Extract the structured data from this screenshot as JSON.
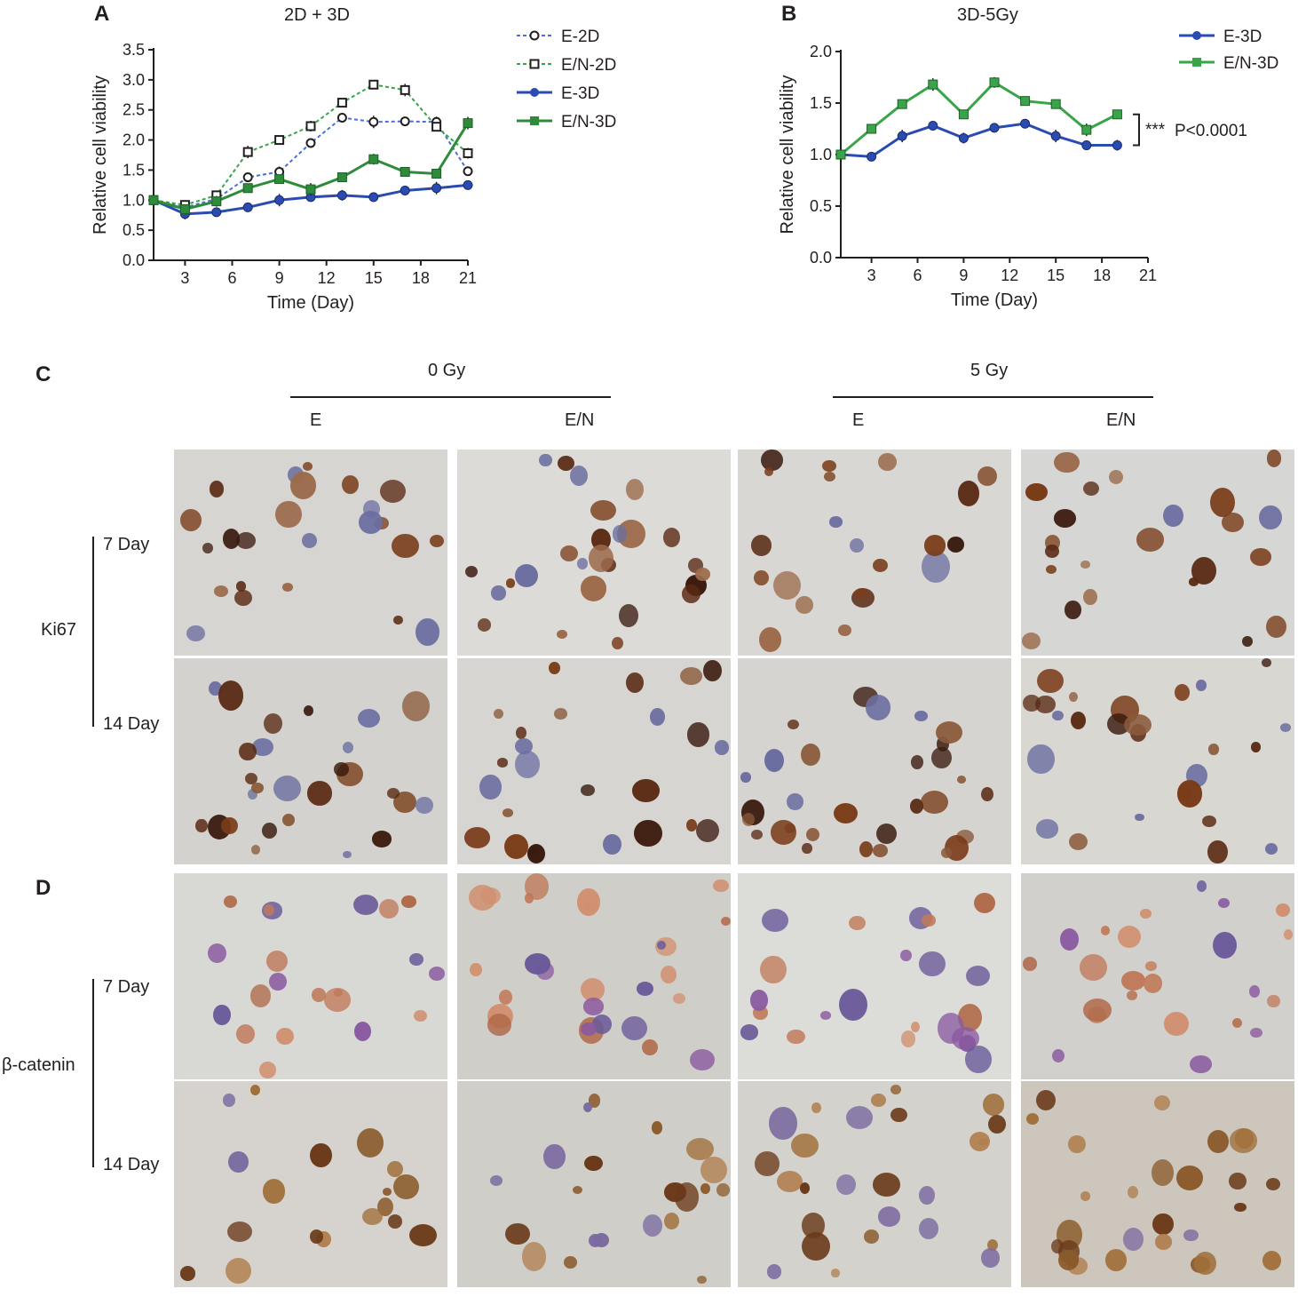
{
  "panels": {
    "A": "A",
    "B": "B",
    "C": "C",
    "D": "D"
  },
  "chart_data": [
    {
      "type": "line",
      "title": "2D + 3D",
      "xlabel": "Time (Day)",
      "ylabel": "Relative cell viability",
      "xlim": [
        1,
        21
      ],
      "ylim": [
        0,
        3.5
      ],
      "xticks": [
        "3",
        "6",
        "9",
        "12",
        "15",
        "18",
        "21"
      ],
      "yticks": [
        "0.0",
        "0.5",
        "1.0",
        "1.5",
        "2.0",
        "2.5",
        "3.0",
        "3.5"
      ],
      "legend_position": "right",
      "series": [
        {
          "name": "E-2D",
          "color": "#4a6fd6",
          "style": "dashed",
          "marker": "open-circle",
          "x": [
            1,
            3,
            5,
            7,
            9,
            11,
            13,
            15,
            17,
            19,
            21
          ],
          "y": [
            1.0,
            0.88,
            1.02,
            1.38,
            1.47,
            1.95,
            2.37,
            2.3,
            2.31,
            2.3,
            1.48
          ]
        },
        {
          "name": "E/N-2D",
          "color": "#3aa44a",
          "style": "dashed",
          "marker": "open-square",
          "x": [
            1,
            3,
            5,
            7,
            9,
            11,
            13,
            15,
            17,
            19,
            21
          ],
          "y": [
            1.0,
            0.92,
            1.08,
            1.8,
            2.0,
            2.23,
            2.62,
            2.92,
            2.83,
            2.22,
            1.78
          ]
        },
        {
          "name": "E-3D",
          "color": "#2a4bb0",
          "style": "solid",
          "marker": "filled-circle",
          "x": [
            1,
            3,
            5,
            7,
            9,
            11,
            13,
            15,
            17,
            19,
            21
          ],
          "y": [
            1.0,
            0.77,
            0.8,
            0.88,
            1.0,
            1.05,
            1.08,
            1.05,
            1.16,
            1.2,
            1.25
          ]
        },
        {
          "name": "E/N-3D",
          "color": "#2e8b3a",
          "style": "solid",
          "marker": "filled-square",
          "x": [
            1,
            3,
            5,
            7,
            9,
            11,
            13,
            15,
            17,
            19,
            21
          ],
          "y": [
            1.0,
            0.85,
            0.98,
            1.2,
            1.35,
            1.18,
            1.38,
            1.68,
            1.47,
            1.44,
            2.28
          ]
        }
      ]
    },
    {
      "type": "line",
      "title": "3D-5Gy",
      "xlabel": "Time (Day)",
      "ylabel": "Relative cell viability",
      "xlim": [
        1,
        21
      ],
      "ylim": [
        0,
        2.0
      ],
      "xticks": [
        "3",
        "6",
        "9",
        "12",
        "15",
        "18",
        "21"
      ],
      "yticks": [
        "0.0",
        "0.5",
        "1.0",
        "1.5",
        "2.0"
      ],
      "legend_position": "top-right",
      "annotation": {
        "stars": "***",
        "text": "P<0.0001"
      },
      "series": [
        {
          "name": "E-3D",
          "color": "#2a4bb0",
          "style": "solid",
          "marker": "filled-circle",
          "x": [
            1,
            3,
            5,
            7,
            9,
            11,
            13,
            15,
            17,
            19
          ],
          "y": [
            1.0,
            0.98,
            1.18,
            1.28,
            1.16,
            1.26,
            1.3,
            1.18,
            1.09,
            1.09
          ]
        },
        {
          "name": "E/N-3D",
          "color": "#3aa44a",
          "style": "solid",
          "marker": "filled-square",
          "x": [
            1,
            3,
            5,
            7,
            9,
            11,
            13,
            15,
            17,
            19
          ],
          "y": [
            1.0,
            1.25,
            1.49,
            1.68,
            1.39,
            1.7,
            1.52,
            1.49,
            1.24,
            1.39
          ]
        }
      ]
    }
  ],
  "micrographs": {
    "dose_headers": [
      "0 Gy",
      "5 Gy"
    ],
    "group_headers": [
      "E",
      "E/N",
      "E",
      "E/N"
    ],
    "ki67_label": "Ki67",
    "bcat_label": "β-catenin",
    "day_labels": [
      "7 Day",
      "14 Day"
    ]
  }
}
